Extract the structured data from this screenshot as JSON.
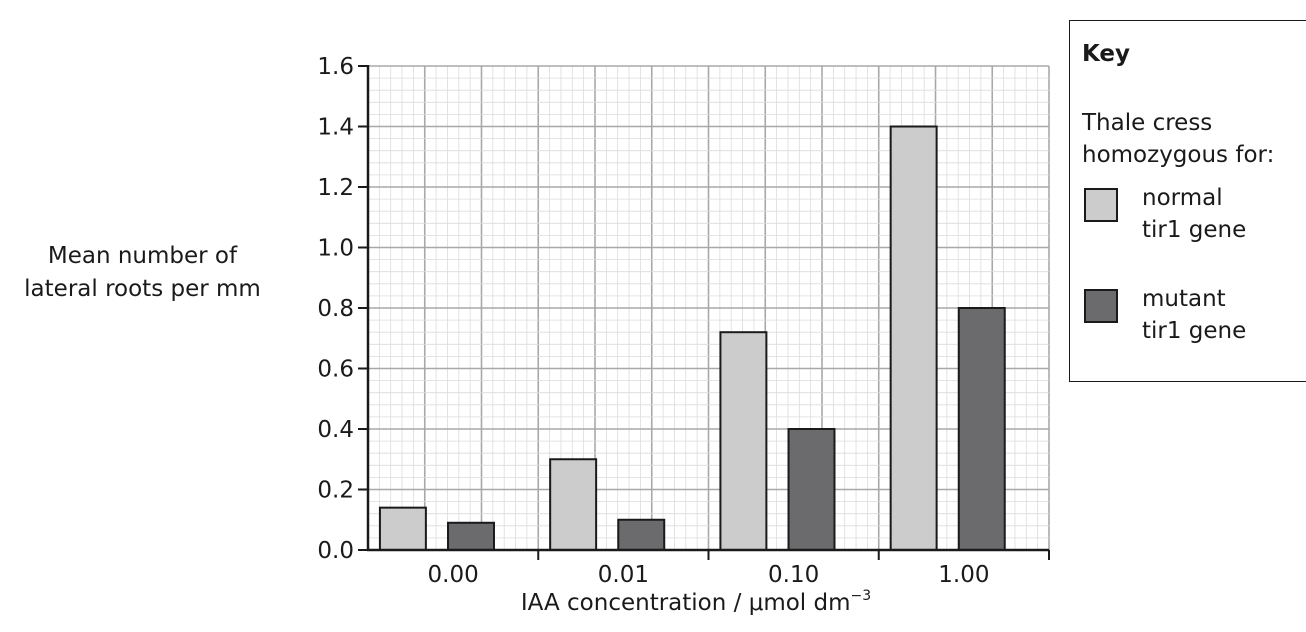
{
  "chart_data": {
    "type": "bar",
    "categories": [
      "0.00",
      "0.01",
      "0.10",
      "1.00"
    ],
    "series": [
      {
        "name": "normal tir1 gene",
        "values": [
          0.14,
          0.3,
          0.72,
          1.4
        ],
        "color": "#cccccc"
      },
      {
        "name": "mutant tir1 gene",
        "values": [
          0.09,
          0.1,
          0.4,
          0.8
        ],
        "color": "#6b6b6d"
      }
    ],
    "ylabel_line1": "Mean number of",
    "ylabel_line2": "lateral roots per mm",
    "xlabel_text": "IAA concentration / μmol dm",
    "xlabel_sup": "−3",
    "ylim": [
      0,
      1.6
    ],
    "yticks": [
      "0.0",
      "0.2",
      "0.4",
      "0.6",
      "0.8",
      "1.0",
      "1.2",
      "1.4",
      "1.6"
    ],
    "grid": true,
    "legend_position": "right"
  },
  "key": {
    "title": "Key",
    "desc_line1": "Thale cress",
    "desc_line2": "homozygous for:",
    "entries": [
      {
        "line1": "normal",
        "line2": "tir1 gene"
      },
      {
        "line1": "mutant",
        "line2": "tir1 gene"
      }
    ]
  }
}
